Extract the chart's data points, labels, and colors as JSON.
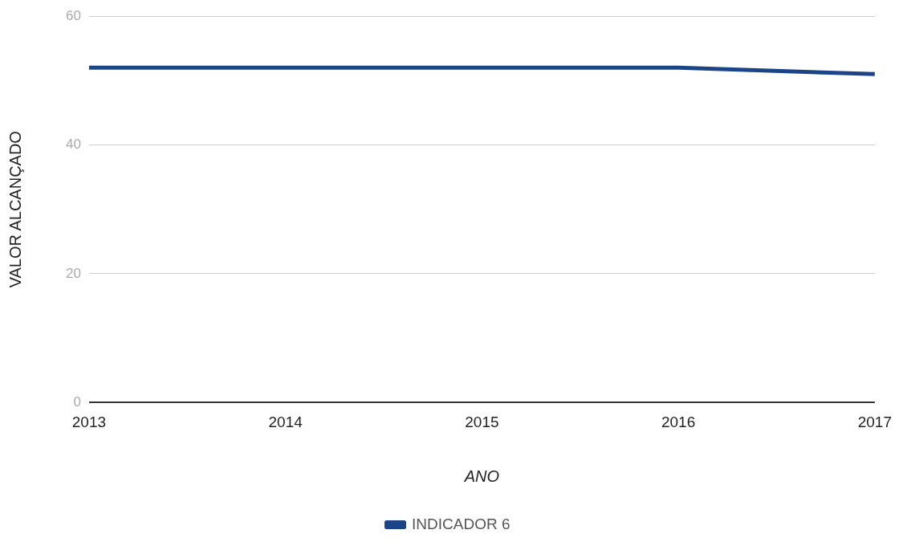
{
  "chart_data": {
    "type": "line",
    "xlabel": "ANO",
    "ylabel": "VALOR ALCANÇADO",
    "categories": [
      "2013",
      "2014",
      "2015",
      "2016",
      "2017"
    ],
    "series": [
      {
        "name": "INDICADOR 6",
        "color": "#1c4587",
        "values": [
          52,
          52,
          52,
          52,
          51
        ]
      }
    ],
    "ylim": [
      0,
      60
    ],
    "yticks": [
      0,
      20,
      40,
      60
    ],
    "grid": "y",
    "legend": "bottom",
    "marker": "none",
    "line_style": "solid"
  }
}
